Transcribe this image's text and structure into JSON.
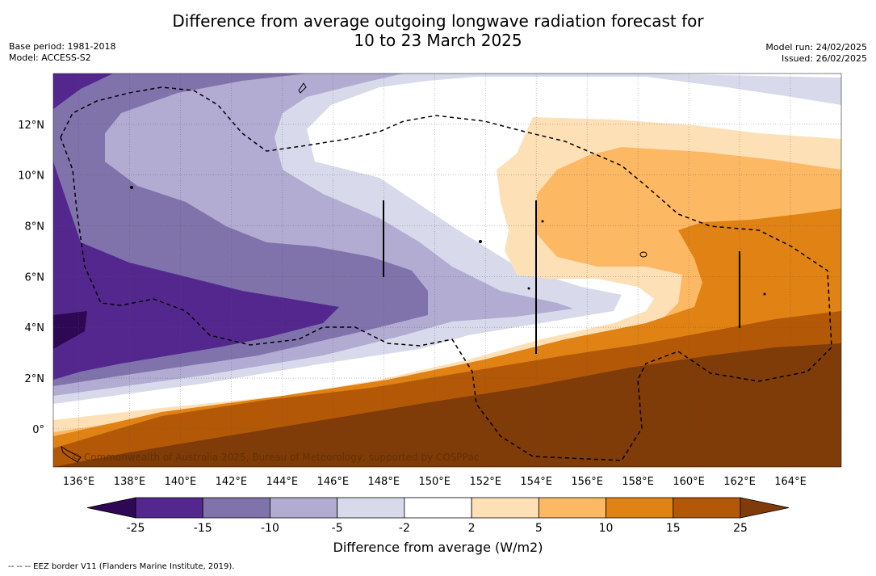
{
  "title": {
    "line1": "Difference from average outgoing longwave radiation forecast for",
    "line2": "10 to 23 March 2025"
  },
  "meta": {
    "base_period": "Base period: 1981-2018",
    "model": "Model: ACCESS-S2",
    "model_run": "Model run: 24/02/2025",
    "issued": "Issued: 26/02/2025"
  },
  "axes": {
    "x_ticks": [
      "136°E",
      "138°E",
      "140°E",
      "142°E",
      "144°E",
      "146°E",
      "148°E",
      "150°E",
      "152°E",
      "154°E",
      "156°E",
      "158°E",
      "160°E",
      "162°E",
      "164°E"
    ],
    "x_values": [
      136,
      138,
      140,
      142,
      144,
      146,
      148,
      150,
      152,
      154,
      156,
      158,
      160,
      162,
      164
    ],
    "y_ticks": [
      "0°",
      "2°N",
      "4°N",
      "6°N",
      "8°N",
      "10°N",
      "12°N"
    ],
    "y_values": [
      0,
      2,
      4,
      6,
      8,
      10,
      12
    ],
    "lon_range": [
      135,
      166
    ],
    "lat_range": [
      -1.5,
      14
    ]
  },
  "colorbar": {
    "title": "Difference from average (W/m2)",
    "labels": [
      "-25",
      "-15",
      "-10",
      "-5",
      "-2",
      "2",
      "5",
      "10",
      "15",
      "25"
    ],
    "colors": [
      "#2e0854",
      "#54278f",
      "#8073ac",
      "#b2abd2",
      "#d8daeb",
      "#ffffff",
      "#fee0b6",
      "#fdb863",
      "#e08214",
      "#b35806",
      "#7f3b08"
    ]
  },
  "credit": "© Commonwealth of Australia 2025, Bureau of Meteorology, supported by COSPPac",
  "eez_note": "--  --  -- EEZ border V11 (Flanders Marine Institute, 2019)."
}
